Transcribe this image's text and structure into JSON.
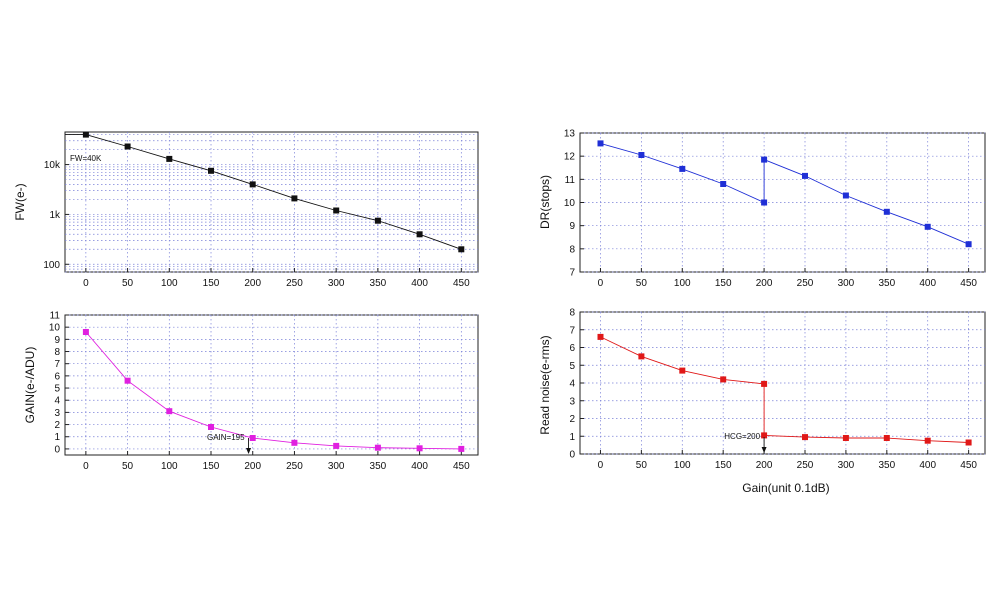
{
  "chart_data": [
    {
      "type": "line",
      "id": "fw",
      "ylabel": "FW(e-)",
      "yscale": "log",
      "ylim": [
        70,
        45000
      ],
      "xlim": [
        -25,
        470
      ],
      "yticks": [
        100,
        1000,
        10000
      ],
      "ytick_labels": [
        "100",
        "1k",
        "10k"
      ],
      "color": "#111111",
      "x": [
        0,
        50,
        100,
        150,
        200,
        250,
        300,
        350,
        400,
        450
      ],
      "series": [
        {
          "values": [
            40000,
            23000,
            13000,
            7500,
            4000,
            2100,
            1200,
            750,
            400,
            200
          ]
        }
      ],
      "annotation": "FW=40K"
    },
    {
      "type": "line",
      "id": "dr",
      "ylabel": "DR(stops)",
      "yscale": "linear",
      "ylim": [
        7,
        13
      ],
      "xlim": [
        -25,
        470
      ],
      "yticks": [
        7,
        8,
        9,
        10,
        11,
        12,
        13
      ],
      "ytick_labels": [
        "7",
        "8",
        "9",
        "10",
        "11",
        "12",
        "13"
      ],
      "color": "#1f2fd6",
      "x": [
        0,
        50,
        100,
        150,
        200,
        200,
        250,
        300,
        350,
        400,
        450
      ],
      "series": [
        {
          "values": [
            12.55,
            12.05,
            11.45,
            10.8,
            10.0,
            11.85,
            11.15,
            10.3,
            9.6,
            8.95,
            8.2
          ]
        }
      ]
    },
    {
      "type": "line",
      "id": "gain",
      "ylabel": "GAIN(e-/ADU)",
      "yscale": "linear",
      "ylim": [
        -0.5,
        11
      ],
      "xlim": [
        -25,
        470
      ],
      "yticks": [
        0,
        1,
        2,
        3,
        4,
        5,
        6,
        7,
        8,
        9,
        10,
        11
      ],
      "ytick_labels": [
        "0",
        "1",
        "2",
        "3",
        "4",
        "5",
        "6",
        "7",
        "8",
        "9",
        "10",
        "11"
      ],
      "color": "#e020e0",
      "x": [
        0,
        50,
        100,
        150,
        200,
        250,
        300,
        350,
        400,
        450
      ],
      "series": [
        {
          "values": [
            9.6,
            5.6,
            3.1,
            1.8,
            0.9,
            0.5,
            0.25,
            0.1,
            0.05,
            0.0
          ]
        }
      ],
      "annotation": "GAIN=195",
      "annotation_x": 195
    },
    {
      "type": "line",
      "id": "rn",
      "ylabel": "Read noise(e-rms)",
      "yscale": "linear",
      "ylim": [
        0,
        8
      ],
      "xlim": [
        -25,
        470
      ],
      "yticks": [
        0,
        1,
        2,
        3,
        4,
        5,
        6,
        7,
        8
      ],
      "ytick_labels": [
        "0",
        "1",
        "2",
        "3",
        "4",
        "5",
        "6",
        "7",
        "8"
      ],
      "color": "#e01818",
      "x": [
        0,
        50,
        100,
        150,
        200,
        200,
        250,
        300,
        350,
        400,
        450
      ],
      "series": [
        {
          "values": [
            6.6,
            5.5,
            4.7,
            4.2,
            3.95,
            1.05,
            0.95,
            0.9,
            0.9,
            0.75,
            0.65
          ]
        }
      ],
      "annotation": "HCG=200",
      "annotation_x": 200,
      "xlabel": "Gain(unit 0.1dB)"
    }
  ],
  "x_ticks": [
    0,
    50,
    100,
    150,
    200,
    250,
    300,
    350,
    400,
    450
  ],
  "x_tick_labels": [
    "0",
    "50",
    "100",
    "150",
    "200",
    "250",
    "300",
    "350",
    "400",
    "450"
  ]
}
